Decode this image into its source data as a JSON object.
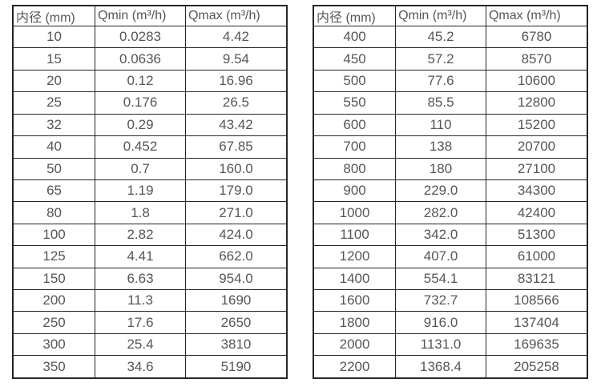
{
  "page": {
    "description": "Two side-by-side flow meter specification tables listing minimum and maximum flow rates by inner diameter",
    "colors": {
      "background": "#ffffff",
      "text": "#565656",
      "border": "#262626"
    }
  },
  "chart_data": [
    {
      "type": "table",
      "columns": [
        "内径 (mm)",
        "Qmin (m³/h)",
        "Qmax (m³/h)"
      ],
      "rows": [
        [
          "10",
          "0.0283",
          "4.42"
        ],
        [
          "15",
          "0.0636",
          "9.54"
        ],
        [
          "20",
          "0.12",
          "16.96"
        ],
        [
          "25",
          "0.176",
          "26.5"
        ],
        [
          "32",
          "0.29",
          "43.42"
        ],
        [
          "40",
          "0.452",
          "67.85"
        ],
        [
          "50",
          "0.7",
          "160.0"
        ],
        [
          "65",
          "1.19",
          "179.0"
        ],
        [
          "80",
          "1.8",
          "271.0"
        ],
        [
          "100",
          "2.82",
          "424.0"
        ],
        [
          "125",
          "4.41",
          "662.0"
        ],
        [
          "150",
          "6.63",
          "954.0"
        ],
        [
          "200",
          "11.3",
          "1690"
        ],
        [
          "250",
          "17.6",
          "2650"
        ],
        [
          "300",
          "25.4",
          "3810"
        ],
        [
          "350",
          "34.6",
          "5190"
        ]
      ]
    },
    {
      "type": "table",
      "columns": [
        "内径 (mm)",
        "Qmin (m³/h)",
        "Qmax (m³/h)"
      ],
      "rows": [
        [
          "400",
          "45.2",
          "6780"
        ],
        [
          "450",
          "57.2",
          "8570"
        ],
        [
          "500",
          "77.6",
          "10600"
        ],
        [
          "550",
          "85.5",
          "12800"
        ],
        [
          "600",
          "110",
          "15200"
        ],
        [
          "700",
          "138",
          "20700"
        ],
        [
          "800",
          "180",
          "27100"
        ],
        [
          "900",
          "229.0",
          "34300"
        ],
        [
          "1000",
          "282.0",
          "42400"
        ],
        [
          "1100",
          "342.0",
          "51300"
        ],
        [
          "1200",
          "407.0",
          "61000"
        ],
        [
          "1400",
          "554.1",
          "83121"
        ],
        [
          "1600",
          "732.7",
          "108566"
        ],
        [
          "1800",
          "916.0",
          "137404"
        ],
        [
          "2000",
          "1131.0",
          "169635"
        ],
        [
          "2200",
          "1368.4",
          "205258"
        ]
      ]
    }
  ]
}
